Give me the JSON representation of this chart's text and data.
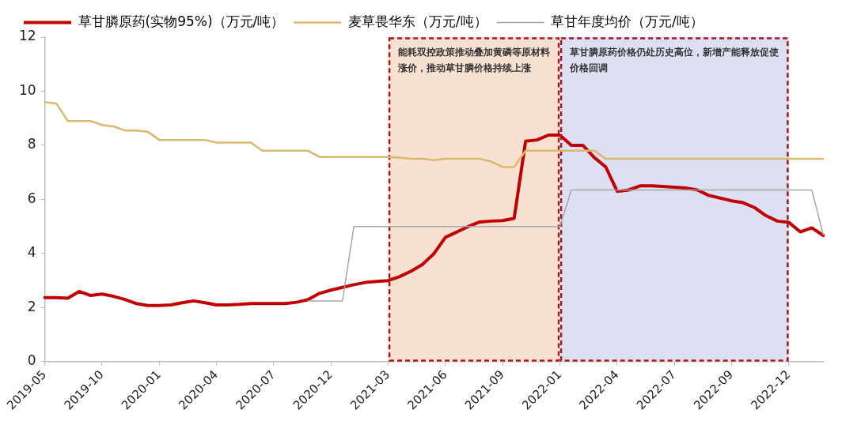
{
  "chart_data": {
    "type": "line",
    "categories": [
      "2019-05",
      null,
      null,
      null,
      null,
      "2019-10",
      null,
      null,
      null,
      null,
      "2020-01",
      null,
      null,
      null,
      null,
      "2020-04",
      null,
      null,
      null,
      null,
      "2020-07",
      null,
      null,
      null,
      null,
      "2020-12",
      null,
      null,
      null,
      null,
      "2021-03",
      null,
      null,
      null,
      null,
      "2021-06",
      null,
      null,
      null,
      null,
      "2021-09",
      null,
      null,
      null,
      null,
      "2022-01",
      null,
      null,
      null,
      null,
      "2022-04",
      null,
      null,
      null,
      null,
      "2022-07",
      null,
      null,
      null,
      null,
      "2022-09",
      null,
      null,
      null,
      null,
      "2022-12",
      null,
      null,
      null
    ],
    "series": [
      {
        "name": "草甘膦原药(实物95%)（万元/吨）",
        "color": "#c00000",
        "values": [
          2.37,
          2.37,
          2.35,
          2.6,
          2.45,
          2.5,
          2.42,
          2.3,
          2.15,
          2.08,
          2.08,
          2.1,
          2.18,
          2.25,
          2.18,
          2.1,
          2.1,
          2.12,
          2.15,
          2.15,
          2.15,
          2.15,
          2.2,
          2.3,
          2.53,
          2.65,
          2.75,
          2.85,
          2.93,
          2.97,
          3.0,
          3.15,
          3.35,
          3.6,
          4.0,
          4.6,
          4.8,
          5.0,
          5.17,
          5.2,
          5.22,
          5.3,
          8.15,
          8.2,
          8.38,
          8.38,
          8.0,
          8.0,
          7.55,
          7.2,
          6.3,
          6.35,
          6.5,
          6.5,
          6.48,
          6.45,
          6.42,
          6.35,
          6.15,
          6.05,
          5.95,
          5.88,
          5.7,
          5.4,
          5.2,
          5.15,
          4.8,
          4.95,
          4.67
        ]
      },
      {
        "name": "麦草畏华东（万元/吨）",
        "color": "#d9b96e",
        "values": [
          9.6,
          9.55,
          8.9,
          8.9,
          8.9,
          8.75,
          8.7,
          8.55,
          8.55,
          8.5,
          8.2,
          8.2,
          8.2,
          8.2,
          8.2,
          8.1,
          8.1,
          8.1,
          8.1,
          7.8,
          7.8,
          7.8,
          7.8,
          7.8,
          7.57,
          7.57,
          7.57,
          7.57,
          7.57,
          7.57,
          7.57,
          7.55,
          7.5,
          7.5,
          7.45,
          7.5,
          7.5,
          7.5,
          7.5,
          7.4,
          7.2,
          7.2,
          7.8,
          7.8,
          7.8,
          7.8,
          7.8,
          7.8,
          7.8,
          7.5,
          7.5,
          7.5,
          7.5,
          7.5,
          7.5,
          7.5,
          7.5,
          7.5,
          7.5,
          7.5,
          7.5,
          7.5,
          7.5,
          7.5,
          7.5,
          7.5,
          7.5,
          7.5,
          7.5
        ]
      },
      {
        "name": "草甘年度均价（万元/吨）",
        "color": "#a6a6a6",
        "values": [
          null,
          null,
          null,
          null,
          null,
          null,
          null,
          null,
          null,
          null,
          null,
          null,
          null,
          null,
          null,
          null,
          null,
          null,
          null,
          null,
          null,
          null,
          null,
          2.25,
          2.25,
          2.25,
          2.25,
          5.0,
          5.0,
          5.0,
          5.0,
          5.0,
          5.0,
          5.0,
          5.0,
          5.0,
          5.0,
          5.0,
          5.0,
          5.0,
          5.0,
          5.0,
          5.0,
          5.0,
          5.0,
          5.0,
          6.35,
          6.35,
          6.35,
          6.35,
          6.35,
          6.35,
          6.35,
          6.35,
          6.35,
          6.35,
          6.35,
          6.35,
          6.35,
          6.35,
          6.35,
          6.35,
          6.35,
          6.35,
          6.35,
          6.35,
          6.35,
          6.35,
          4.7
        ]
      }
    ],
    "ylim": [
      0,
      12
    ],
    "yticks": [
      0,
      2,
      4,
      6,
      8,
      10,
      12
    ],
    "bands": [
      {
        "axis": "x",
        "from": "2021-03",
        "to": "2022-01",
        "color": "#f8e0d2",
        "label": "能耗双控政策推动叠加黄磷等原材料涨价，推动草甘膦价格持续上涨"
      },
      {
        "axis": "x",
        "from": "2022-01",
        "to": "2022-12",
        "color": "#dde0f3",
        "label": "草甘膦原药价格仍处历史高位，新增产能释放促使价格回调"
      }
    ],
    "grid": false,
    "legend": "top",
    "marker": "none",
    "line_style": "solid"
  }
}
